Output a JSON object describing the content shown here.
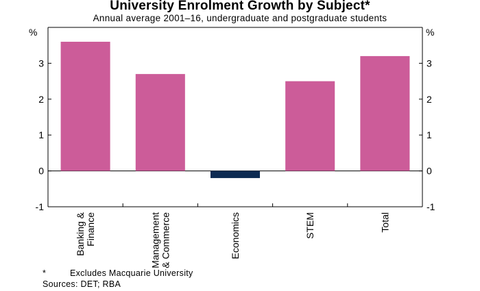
{
  "chart_data": {
    "type": "bar",
    "title": "University Enrolment Growth by Subject*",
    "subtitle": "Annual average 2001–16, undergraduate and postgraduate students",
    "categories": [
      [
        "Banking &",
        "Finance"
      ],
      [
        "Management",
        "& Commerce"
      ],
      [
        "Economics"
      ],
      [
        "STEM"
      ],
      [
        "Total"
      ]
    ],
    "values": [
      3.6,
      2.7,
      -0.2,
      2.5,
      3.2
    ],
    "bar_colors": [
      "#cc5c99",
      "#cc5c99",
      "#0d2b52",
      "#cc5c99",
      "#cc5c99"
    ],
    "ylim": [
      -1,
      4
    ],
    "yticks": [
      -1,
      0,
      1,
      2,
      3
    ],
    "yunit": "%",
    "grid": false,
    "legend": "none"
  },
  "footnote": {
    "marker": "*",
    "text": "Excludes Macquarie University"
  },
  "sources": "Sources:   DET; RBA",
  "colors": {
    "positive_bar": "#cc5c99",
    "negative_bar": "#0d2b52",
    "axis": "#000000"
  }
}
